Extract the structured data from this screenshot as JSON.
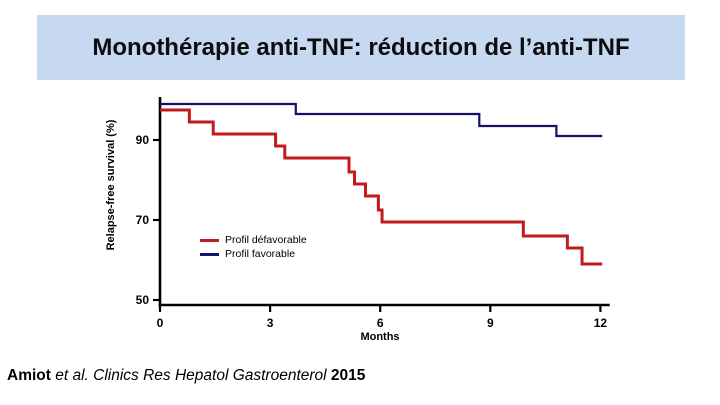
{
  "slide": {
    "title": "Monothérapie anti-TNF: réduction de l’anti-TNF",
    "banner_color": "#c6d9f0",
    "title_color": "#0d0d0d",
    "background_color": "#ffffff"
  },
  "chart_data": {
    "type": "line",
    "subtype": "kaplan-meier-step",
    "title": "",
    "xlabel": "Months",
    "ylabel": "Relapse-free survival (%)",
    "x_ticks": [
      0,
      3,
      6,
      9,
      12
    ],
    "y_ticks": [
      50,
      70,
      90
    ],
    "xlim": [
      0,
      12.2
    ],
    "ylim": [
      50,
      101
    ],
    "x_end": 12.05,
    "grid": false,
    "legend_position": "inside-lower-left",
    "axis_color": "#000000",
    "series": [
      {
        "name": "Profil défavorable",
        "color": "#c11b1e",
        "line_width": 3,
        "points": [
          [
            0,
            97.5
          ],
          [
            0.8,
            94.5
          ],
          [
            1.45,
            91.5
          ],
          [
            3.15,
            88.5
          ],
          [
            3.4,
            85.5
          ],
          [
            5.15,
            82
          ],
          [
            5.3,
            79
          ],
          [
            5.6,
            76
          ],
          [
            5.95,
            72.5
          ],
          [
            6.05,
            69.5
          ],
          [
            9.9,
            66
          ],
          [
            11.1,
            63
          ],
          [
            11.5,
            59
          ]
        ]
      },
      {
        "name": "Profil favorable",
        "color": "#12126b",
        "line_width": 2.2,
        "points": [
          [
            0,
            99
          ],
          [
            3.7,
            96.5
          ],
          [
            8.7,
            93.5
          ],
          [
            10.8,
            91
          ]
        ]
      }
    ]
  },
  "citation": {
    "author": "Amiot",
    "source": "et al. Clinics Res Hepatol Gastroenterol",
    "year": "2015"
  }
}
